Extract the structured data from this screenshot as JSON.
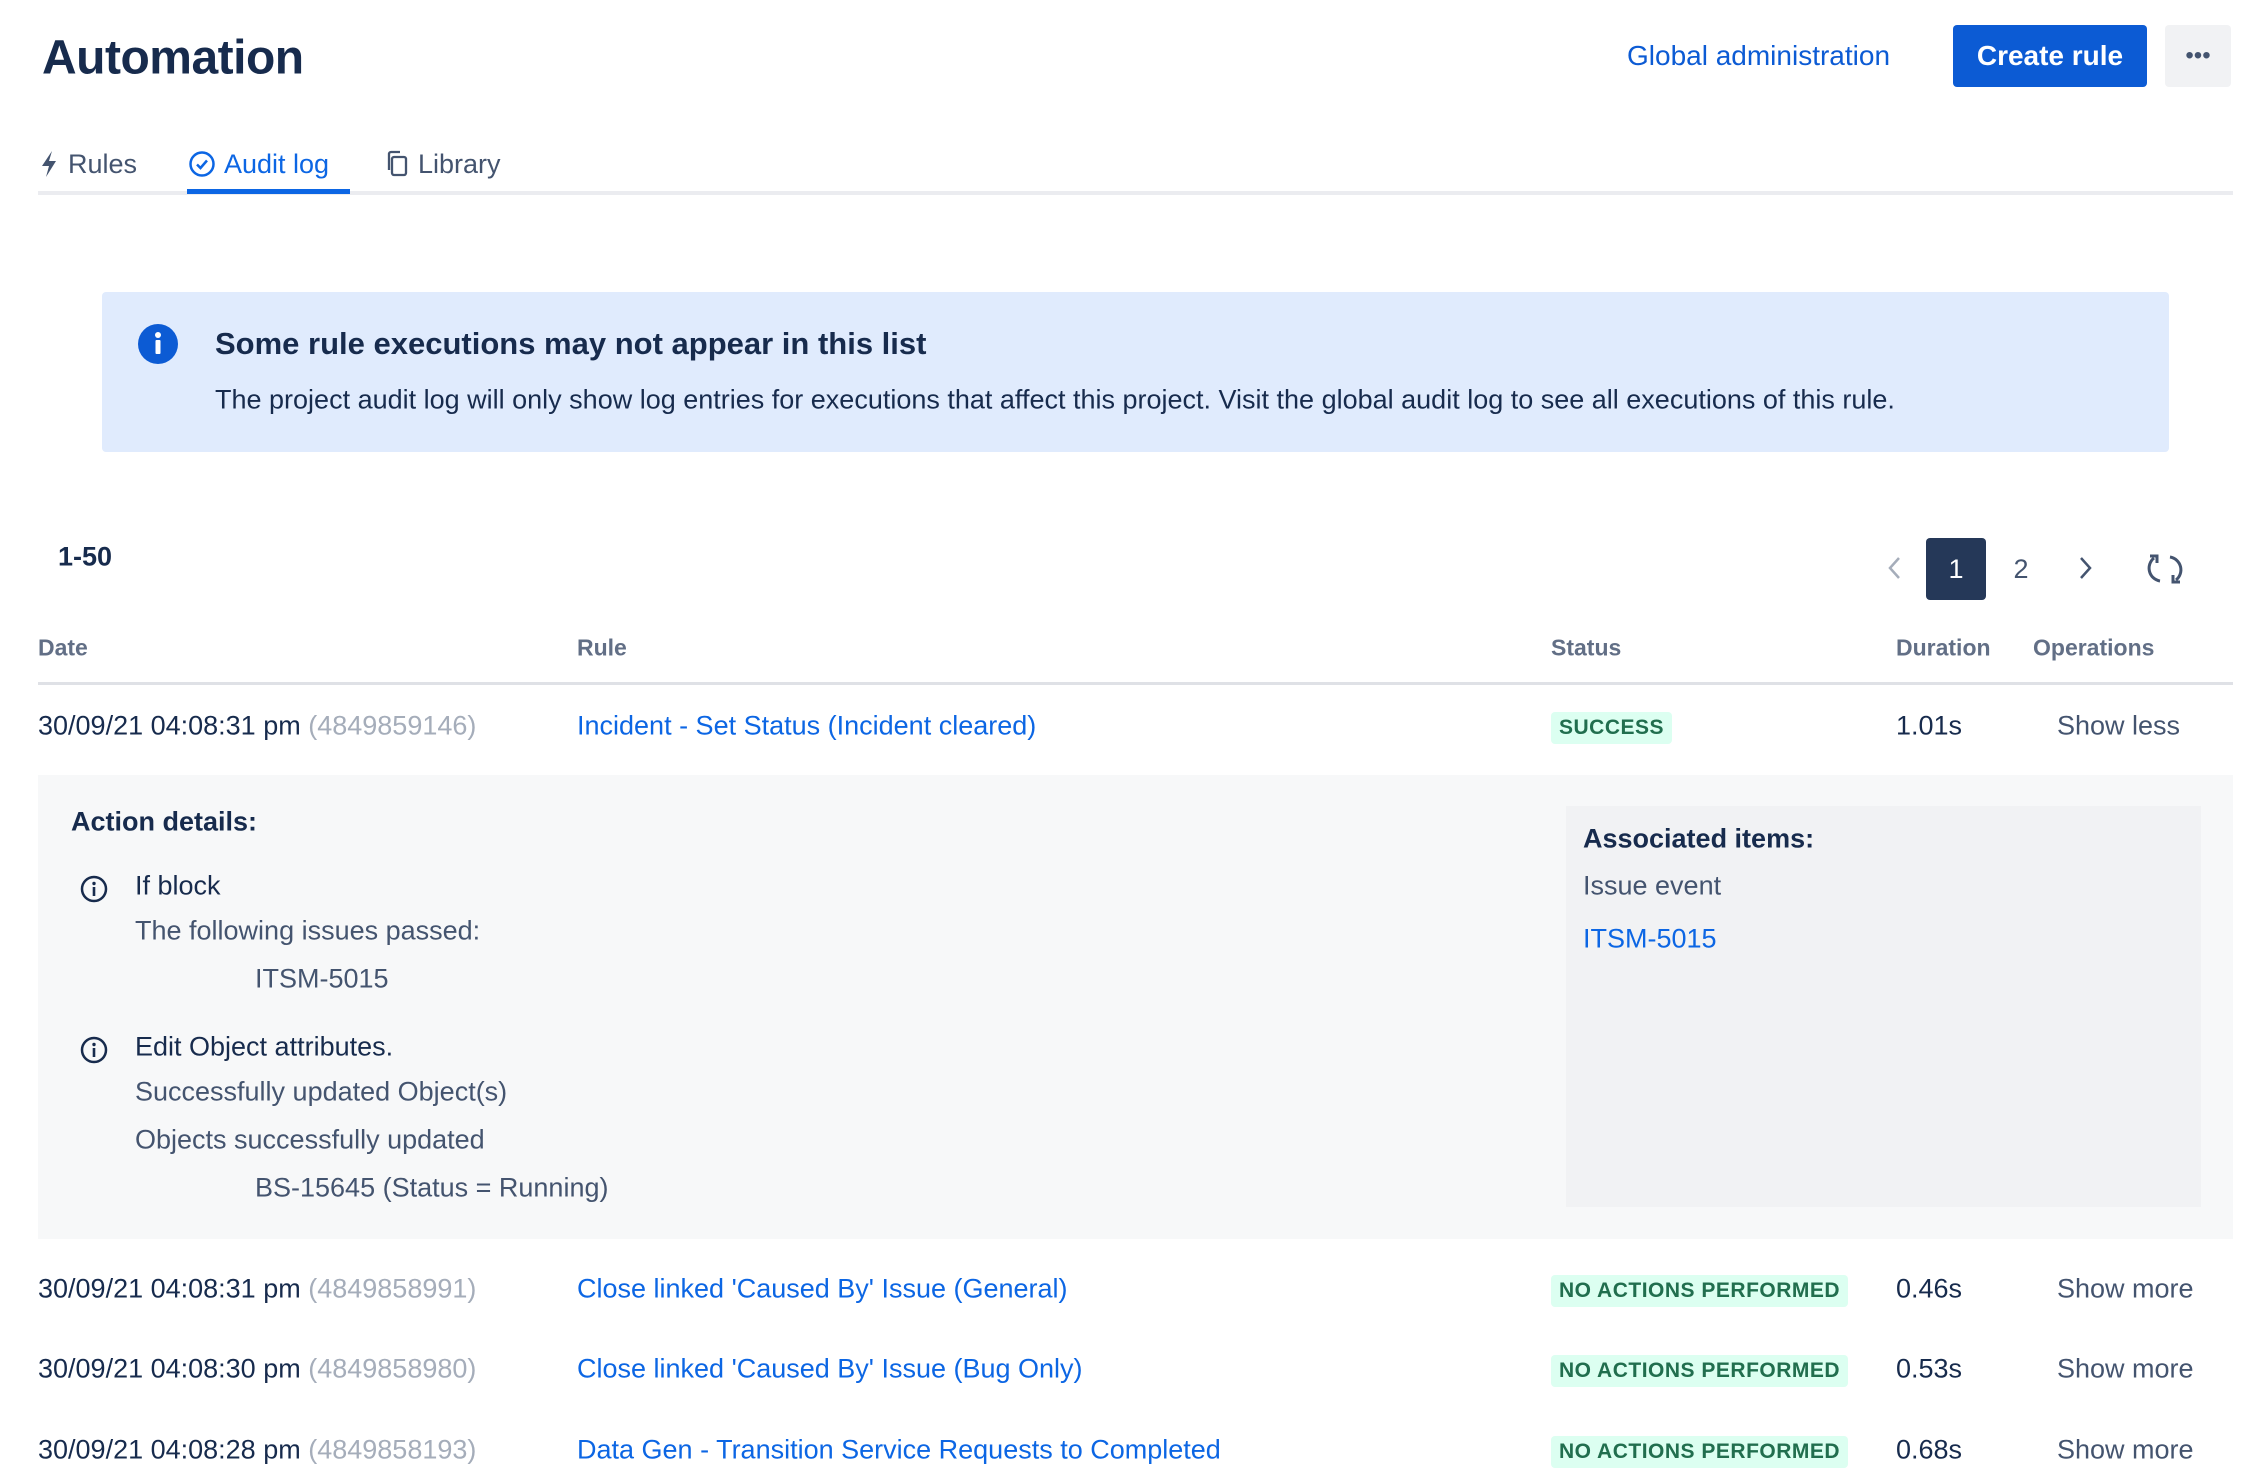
{
  "header": {
    "title": "Automation",
    "global_admin": "Global administration",
    "create_rule": "Create rule",
    "more_label": "•••"
  },
  "tabs": [
    {
      "label": "Rules",
      "icon": "lightning-icon"
    },
    {
      "label": "Audit log",
      "icon": "check-circle-icon",
      "active": true
    },
    {
      "label": "Library",
      "icon": "copy-icon"
    }
  ],
  "banner": {
    "title": "Some rule executions may not appear in this list",
    "body": "The project audit log will only show log entries for executions that affect this project. Visit the global audit log to see all executions of this rule."
  },
  "range": "1-50",
  "pagination": {
    "pages": [
      "1",
      "2"
    ],
    "current": "1"
  },
  "columns": {
    "date": "Date",
    "rule": "Rule",
    "status": "Status",
    "duration": "Duration",
    "operations": "Operations"
  },
  "rows": [
    {
      "date": "30/09/21 04:08:31 pm",
      "id": "(4849859146)",
      "rule": "Incident - Set Status (Incident cleared)",
      "status": "SUCCESS",
      "duration": "1.01s",
      "op": "Show less"
    },
    {
      "date": "30/09/21 04:08:31 pm",
      "id": "(4849858991)",
      "rule": "Close linked 'Caused By' Issue (General)",
      "status": "NO ACTIONS PERFORMED",
      "duration": "0.46s",
      "op": "Show more"
    },
    {
      "date": "30/09/21 04:08:30 pm",
      "id": "(4849858980)",
      "rule": "Close linked 'Caused By' Issue (Bug Only)",
      "status": "NO ACTIONS PERFORMED",
      "duration": "0.53s",
      "op": "Show more"
    },
    {
      "date": "30/09/21 04:08:28 pm",
      "id": "(4849858193)",
      "rule": "Data Gen - Transition Service Requests to Completed",
      "status": "NO ACTIONS PERFORMED",
      "duration": "0.68s",
      "op": "Show more"
    }
  ],
  "details": {
    "title": "Action details:",
    "actions": [
      {
        "name": "If block",
        "lines": [
          "The following issues passed:"
        ],
        "items": [
          "ITSM-5015"
        ]
      },
      {
        "name": "Edit Object attributes.",
        "lines": [
          "Successfully updated Object(s)",
          "Objects successfully updated"
        ],
        "items": [
          "BS-15645 (Status = Running)"
        ]
      }
    ],
    "associated": {
      "title": "Associated items:",
      "label": "Issue event",
      "link": "ITSM-5015"
    }
  },
  "colors": {
    "primary": "#0c5bd4",
    "success_bg": "#dcfff1",
    "success_text": "#216e4e",
    "banner_bg": "#e0ebfd"
  }
}
